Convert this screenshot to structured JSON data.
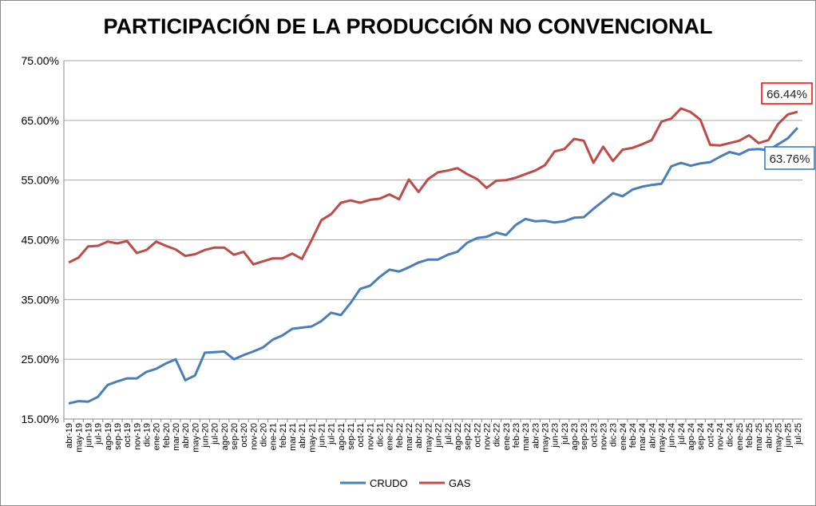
{
  "chart_data": {
    "type": "line",
    "title": "PARTICIPACIÓN DE LA PRODUCCIÓN NO CONVENCIONAL",
    "xlabel": "",
    "ylabel": "",
    "ylim": [
      15,
      75
    ],
    "yticks": [
      "15.00%",
      "25.00%",
      "35.00%",
      "45.00%",
      "55.00%",
      "65.00%",
      "75.00%"
    ],
    "grid": true,
    "legend": "bottom",
    "categories": [
      "abr-19",
      "may-19",
      "jun-19",
      "jul-19",
      "ago-19",
      "sep-19",
      "oct-19",
      "nov-19",
      "dic-19",
      "ene-20",
      "feb-20",
      "mar-20",
      "abr-20",
      "may-20",
      "jun-20",
      "jul-20",
      "ago-20",
      "sep-20",
      "oct-20",
      "nov-20",
      "dic-20",
      "ene-21",
      "feb-21",
      "mar-21",
      "abr-21",
      "may-21",
      "jun-21",
      "jul-21",
      "ago-21",
      "sep-21",
      "oct-21",
      "nov-21",
      "dic-21",
      "ene-22",
      "feb-22",
      "mar-22",
      "abr-22",
      "may-22",
      "jun-22",
      "jul-22",
      "ago-22",
      "sep-22",
      "oct-22",
      "nov-22",
      "dic-22",
      "ene-23",
      "feb-23",
      "mar-23",
      "abr-23",
      "may-23",
      "jun-23",
      "jul-23",
      "ago-23",
      "sep-23",
      "oct-23",
      "nov-23",
      "dic-23",
      "ene-24",
      "feb-24",
      "mar-24",
      "abr-24",
      "may-24",
      "jun-24",
      "jul-24",
      "ago-24",
      "sep-24",
      "oct-24",
      "nov-24",
      "dic-24",
      "ene-25",
      "feb-25",
      "mar-25",
      "abr-25",
      "may-25",
      "jun-25",
      "jul-25"
    ],
    "series": [
      {
        "name": "CRUDO",
        "color": "#4a7ebb",
        "values": [
          17.6,
          18.0,
          17.9,
          18.7,
          20.7,
          21.3,
          21.8,
          21.8,
          22.9,
          23.4,
          24.3,
          25.0,
          21.5,
          22.3,
          26.1,
          26.2,
          26.3,
          25.0,
          25.7,
          26.3,
          27.0,
          28.3,
          29.0,
          30.1,
          30.3,
          30.5,
          31.4,
          32.8,
          32.4,
          34.4,
          36.8,
          37.3,
          38.8,
          40.0,
          39.7,
          40.4,
          41.2,
          41.7,
          41.7,
          42.5,
          43.0,
          44.5,
          45.3,
          45.5,
          46.2,
          45.8,
          47.5,
          48.5,
          48.1,
          48.2,
          47.9,
          48.1,
          48.7,
          48.8,
          50.2,
          51.5,
          52.8,
          52.3,
          53.4,
          53.9,
          54.2,
          54.4,
          57.3,
          57.9,
          57.4,
          57.8,
          58.0,
          58.9,
          59.7,
          59.3,
          60.1,
          60.2,
          60.0,
          61.0,
          62.0,
          63.76
        ],
        "end_label": "63.76%",
        "label_border": "#2e75b6"
      },
      {
        "name": "GAS",
        "color": "#be4b48",
        "values": [
          41.2,
          42.0,
          43.9,
          44.0,
          44.7,
          44.4,
          44.8,
          42.8,
          43.3,
          44.7,
          44.0,
          43.4,
          42.3,
          42.6,
          43.3,
          43.7,
          43.7,
          42.5,
          43.0,
          40.9,
          41.4,
          41.9,
          41.9,
          42.7,
          41.8,
          45.0,
          48.3,
          49.3,
          51.2,
          51.6,
          51.2,
          51.7,
          51.9,
          52.6,
          51.8,
          55.1,
          53.0,
          55.2,
          56.3,
          56.6,
          57.0,
          56.0,
          55.2,
          53.7,
          54.9,
          55.0,
          55.4,
          56.0,
          56.6,
          57.5,
          59.8,
          60.2,
          61.9,
          61.6,
          57.9,
          60.6,
          58.2,
          60.1,
          60.4,
          61.0,
          61.7,
          64.8,
          65.3,
          67.0,
          66.4,
          65.1,
          60.9,
          60.8,
          61.2,
          61.6,
          62.5,
          61.2,
          61.7,
          64.4,
          66.0,
          66.44
        ],
        "end_label": "66.44%",
        "label_border": "#ff0000"
      }
    ]
  }
}
